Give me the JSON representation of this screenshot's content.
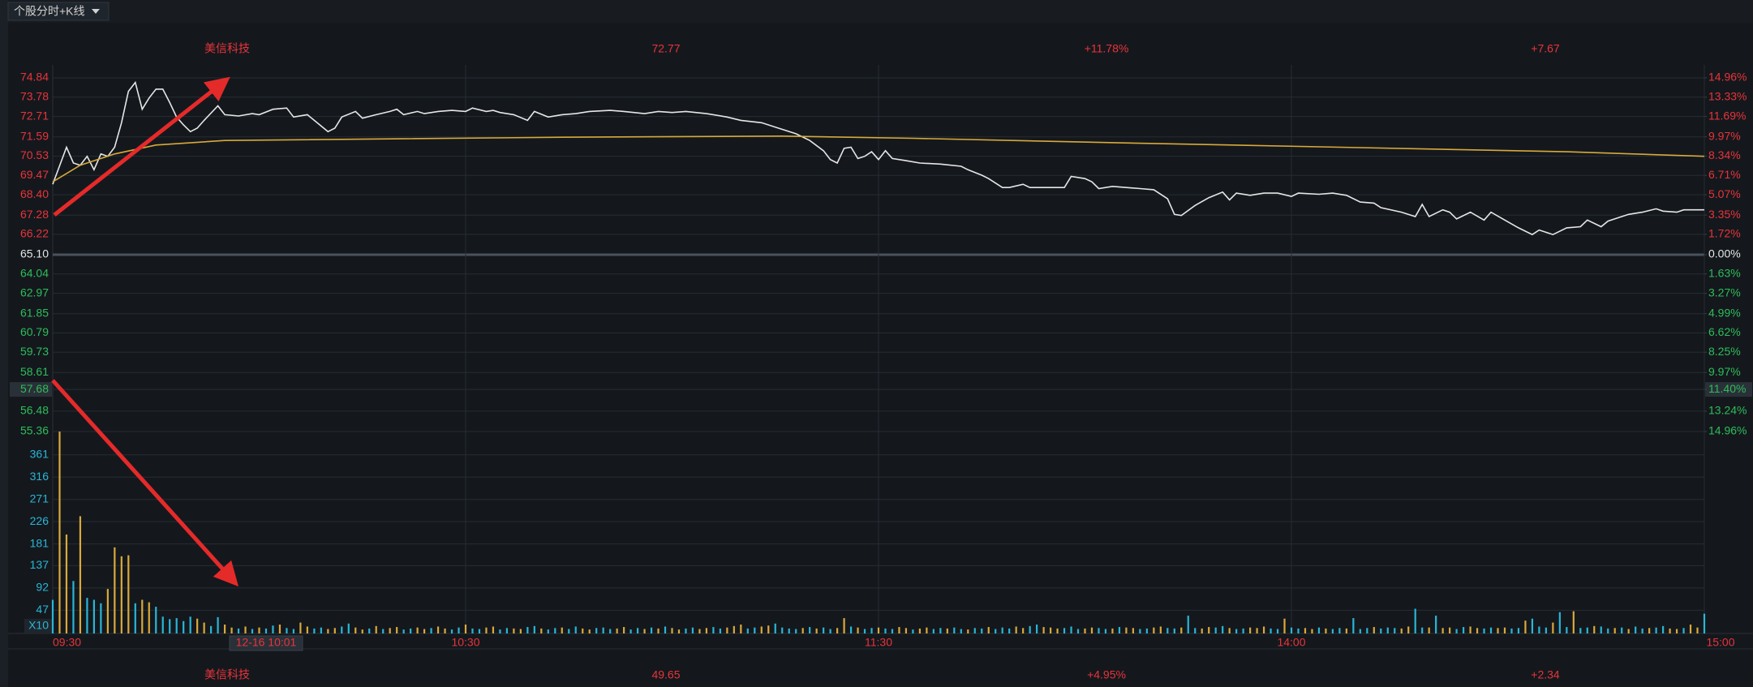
{
  "header": {
    "selector": "个股分时+K线"
  },
  "chart_data": {
    "type": "line",
    "info_top": [
      "美信科技",
      "72.77",
      "+11.78%",
      "+7.67"
    ],
    "info_bottom": [
      "美信科技",
      "49.65",
      "+4.95%",
      "+2.34"
    ],
    "info_colors": [
      "#e8343a",
      "#e8343a",
      "#e8343a",
      "#e8343a"
    ],
    "xlim": [
      0,
      240
    ],
    "xticks": [
      {
        "value": 0,
        "label": "09:30"
      },
      {
        "value": 60,
        "label": "10:30"
      },
      {
        "value": 120,
        "label": "11:30"
      },
      {
        "value": 180,
        "label": "14:00"
      },
      {
        "value": 240,
        "label": "15:00"
      }
    ],
    "ylim": [
      55.36,
      74.84
    ],
    "yticks": [
      74.84,
      73.78,
      72.71,
      71.59,
      70.53,
      69.47,
      {
        "value": 68.4,
        "label": "68.40"
      },
      67.28,
      66.22,
      {
        "value": 65.1,
        "label": "65.10"
      },
      64.04,
      62.97,
      61.85,
      60.79,
      59.73,
      58.61,
      57.68,
      56.48,
      55.36
    ],
    "base_tick": 9,
    "up_color": "#e8343a",
    "down_color": "#2ebd5a",
    "base_color": "#e6e6e6",
    "y2lim": [
      -14.96,
      14.96
    ],
    "y2ticks": [
      {
        "value": 14.96,
        "label": "14.96%"
      },
      {
        "value": 13.33,
        "label": "13.33%"
      },
      {
        "value": 11.69,
        "label": "11.69%"
      },
      {
        "value": 9.97,
        "label": "9.97%"
      },
      {
        "value": 8.34,
        "label": "8.34%"
      },
      {
        "value": 6.71,
        "label": "6.71%"
      },
      {
        "value": 5.07,
        "label": "5.07%"
      },
      {
        "value": 3.35,
        "label": "3.35%"
      },
      {
        "value": 1.72,
        "label": "1.72%"
      },
      {
        "value": 0,
        "label": "0.00%"
      },
      {
        "value": -1.63,
        "label": "1.63%"
      },
      {
        "value": -3.27,
        "label": "3.27%"
      },
      {
        "value": -4.99,
        "label": "4.99%"
      },
      {
        "value": -6.62,
        "label": "6.62%"
      },
      {
        "value": -8.25,
        "label": "8.25%"
      },
      {
        "value": -9.97,
        "label": "9.97%"
      },
      {
        "value": -11.4,
        "label": "11.40%"
      },
      {
        "value": -13.24,
        "label": "13.24%"
      },
      {
        "value": -14.96,
        "label": "14.96%"
      }
    ],
    "series": [
      {
        "color": "#e6e6e6",
        "x": [
          0,
          2,
          3,
          4,
          5,
          6,
          7,
          8,
          9,
          10,
          11,
          12,
          13,
          14,
          15,
          16,
          17,
          18,
          19,
          20,
          21,
          22,
          24,
          25,
          27,
          29,
          30,
          32,
          34,
          35,
          37,
          38,
          40,
          41,
          42,
          44,
          45,
          47,
          49,
          50,
          51,
          53,
          54,
          56,
          58,
          60,
          61,
          63,
          64,
          65,
          67,
          69,
          70,
          72,
          74,
          76,
          78,
          81,
          83,
          86,
          88,
          90,
          92,
          95,
          98,
          100,
          103,
          105,
          108,
          110,
          112,
          113,
          114,
          115,
          116,
          117,
          118,
          119,
          120,
          121,
          122,
          124,
          126,
          129,
          132,
          133,
          135,
          136,
          138,
          139,
          141,
          142,
          144,
          147,
          148,
          150,
          151,
          152,
          154,
          156,
          158,
          160,
          162,
          163,
          164,
          166,
          168,
          170,
          171,
          172,
          174,
          176,
          178,
          180,
          181,
          184,
          186,
          188,
          190,
          192,
          193,
          196,
          198,
          199,
          200,
          202,
          203,
          204,
          206,
          208,
          209,
          211,
          213,
          215,
          216,
          218,
          220,
          222,
          223,
          225,
          226,
          228,
          229,
          231,
          233,
          234,
          236,
          237,
          240
        ],
        "values": [
          68.98,
          71.02,
          70.15,
          70.03,
          70.52,
          69.78,
          70.65,
          70.52,
          71.02,
          72.37,
          74.1,
          74.59,
          73.11,
          73.73,
          74.22,
          74.22,
          73.48,
          72.68,
          72.25,
          71.88,
          72.07,
          72.5,
          73.3,
          72.81,
          72.74,
          72.87,
          72.81,
          73.11,
          73.18,
          72.68,
          72.81,
          72.5,
          71.88,
          72.07,
          72.68,
          72.99,
          72.62,
          72.81,
          72.99,
          73.11,
          72.81,
          72.99,
          72.87,
          72.99,
          73.05,
          72.99,
          73.18,
          72.99,
          73.05,
          72.93,
          72.81,
          72.5,
          72.99,
          72.68,
          72.81,
          72.87,
          72.99,
          73.05,
          72.99,
          72.87,
          72.99,
          72.93,
          72.99,
          72.87,
          72.68,
          72.5,
          72.37,
          72.13,
          71.76,
          71.39,
          70.83,
          70.34,
          70.15,
          70.96,
          71.02,
          70.4,
          70.52,
          70.77,
          70.34,
          70.83,
          70.4,
          70.28,
          70.15,
          70.09,
          69.97,
          69.78,
          69.48,
          69.29,
          68.8,
          68.8,
          68.98,
          68.8,
          68.8,
          68.8,
          69.41,
          69.29,
          69.11,
          68.74,
          68.86,
          68.8,
          68.74,
          68.68,
          68.18,
          67.32,
          67.26,
          67.81,
          68.24,
          68.55,
          68.12,
          68.49,
          68.37,
          68.49,
          68.49,
          68.31,
          68.49,
          68.43,
          68.49,
          68.37,
          68.0,
          67.94,
          67.69,
          67.44,
          67.2,
          67.87,
          67.2,
          67.57,
          67.44,
          67.07,
          67.44,
          67.01,
          67.44,
          67.01,
          66.58,
          66.21,
          66.46,
          66.21,
          66.58,
          66.64,
          67.01,
          66.64,
          66.95,
          67.2,
          67.32,
          67.44,
          67.63,
          67.5,
          67.44,
          67.57,
          67.57
        ]
      },
      {
        "color": "#d9a93a",
        "x": [
          0,
          4,
          9,
          15,
          25,
          74,
          106,
          125,
          155,
          187,
          220,
          240
        ],
        "values": [
          69.11,
          70.03,
          70.65,
          71.14,
          71.39,
          71.57,
          71.63,
          71.51,
          71.26,
          71.02,
          70.77,
          70.52
        ]
      }
    ],
    "volume": {
      "type": "bar",
      "ylim": [
        0,
        400
      ],
      "yticks": [
        361,
        316,
        271,
        226,
        181,
        137,
        92,
        47
      ],
      "unit_label": "X10",
      "up_color": "#d9a93a",
      "down_color": "#29b6d6",
      "label_color": "#29b6d6",
      "direction": "duududdduuuuduudddddduudduudududdudduudduudduududuudduuduuddudduudduudduddudduuddduuddududuudduudduuudduuddddududduududdudduuduudduddudduddduudduuuddduudduduudduuddudduuddudduuuddudduududduddduddduudduduudduudduudduddduddudduddududdudduuduudduddududdudduddudduuddudduddu",
      "values": [
        68,
        408,
        200,
        106,
        237,
        72,
        68,
        61,
        90,
        174,
        156,
        158,
        61,
        68,
        63,
        54,
        34,
        29,
        31,
        25,
        34,
        30,
        22,
        15,
        33,
        18,
        12,
        10,
        14,
        9,
        12,
        10,
        16,
        18,
        11,
        9,
        22,
        14,
        10,
        12,
        9,
        11,
        14,
        20,
        12,
        8,
        10,
        15,
        9,
        11,
        13,
        8,
        10,
        12,
        9,
        11,
        14,
        10,
        8,
        12,
        18,
        10,
        9,
        12,
        14,
        8,
        11,
        10,
        9,
        13,
        15,
        10,
        8,
        11,
        12,
        9,
        14,
        10,
        8,
        11,
        12,
        9,
        10,
        13,
        8,
        11,
        9,
        12,
        10,
        14,
        11,
        8,
        10,
        12,
        9,
        11,
        13,
        10,
        12,
        15,
        18,
        10,
        12,
        14,
        16,
        20,
        12,
        10,
        9,
        11,
        13,
        10,
        12,
        9,
        11,
        31,
        14,
        12,
        9,
        11,
        12,
        10,
        9,
        13,
        11,
        8,
        10,
        12,
        9,
        11,
        10,
        12,
        9,
        8,
        11,
        10,
        13,
        9,
        12,
        10,
        14,
        11,
        15,
        18,
        13,
        12,
        10,
        11,
        14,
        9,
        10,
        12,
        11,
        9,
        10,
        13,
        12,
        11,
        9,
        10,
        12,
        14,
        11,
        10,
        12,
        36,
        11,
        10,
        13,
        12,
        15,
        11,
        9,
        10,
        12,
        11,
        14,
        10,
        9,
        30,
        12,
        10,
        11,
        9,
        12,
        10,
        9,
        11,
        10,
        31,
        9,
        11,
        13,
        10,
        12,
        11,
        10,
        14,
        50,
        12,
        12,
        36,
        11,
        12,
        9,
        13,
        14,
        11,
        10,
        12,
        11,
        12,
        10,
        11,
        26,
        30,
        14,
        12,
        22,
        43,
        13,
        45,
        11,
        12,
        15,
        14,
        10,
        11,
        12,
        9,
        14,
        10,
        11,
        12,
        15,
        10,
        9,
        11,
        18,
        12,
        40
      ]
    },
    "crosshair": {
      "x": 31,
      "x_label": "12-16 10:01",
      "ytick": 16
    }
  }
}
